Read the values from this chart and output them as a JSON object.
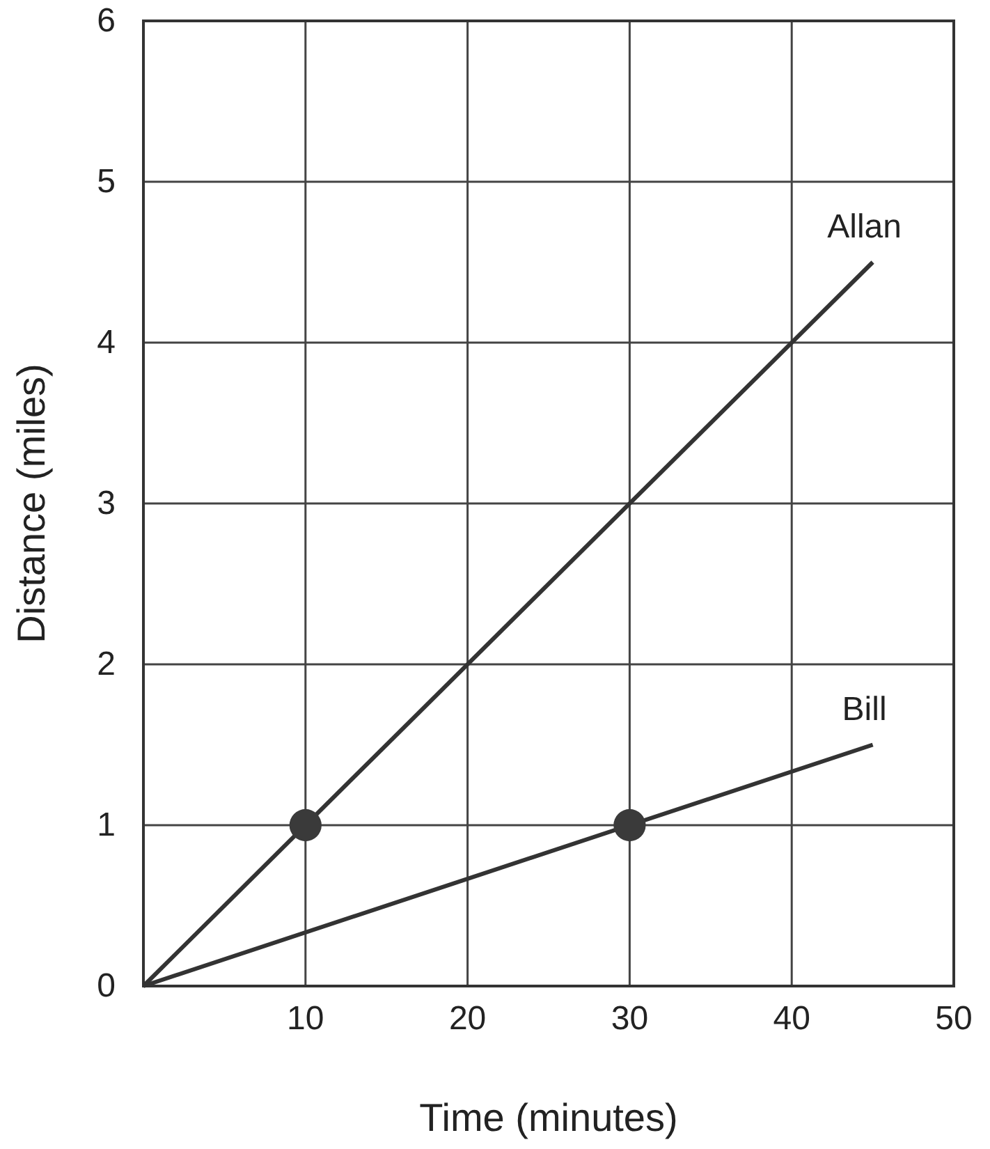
{
  "chart_data": {
    "type": "line",
    "xlabel": "Time (minutes)",
    "ylabel": "Distance (miles)",
    "xlim": [
      0,
      50
    ],
    "ylim": [
      0,
      6
    ],
    "xticks": [
      10,
      20,
      30,
      40,
      50
    ],
    "yticks": [
      0,
      1,
      2,
      3,
      4,
      5,
      6
    ],
    "grid": true,
    "marker": "none",
    "series": [
      {
        "name": "Allan",
        "color": "#333333",
        "x": [
          0,
          45
        ],
        "values": [
          0,
          4.5
        ]
      },
      {
        "name": "Bill",
        "color": "#333333",
        "x": [
          0,
          45
        ],
        "values": [
          0,
          1.5
        ]
      },
      {
        "type": "scatter",
        "color": "#3a3a3a",
        "marker": "circle",
        "x": [
          10,
          30
        ],
        "values": [
          1,
          1
        ]
      }
    ]
  }
}
